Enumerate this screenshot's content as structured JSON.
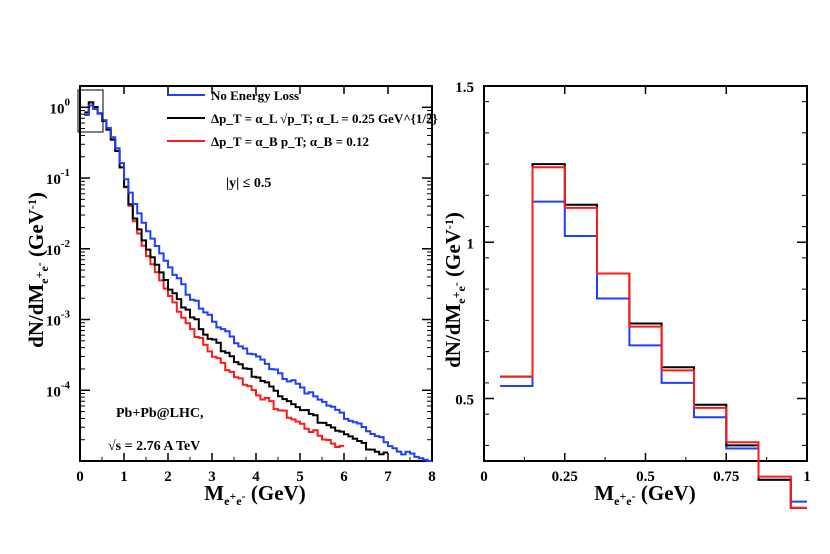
{
  "chart_data": [
    {
      "type": "line",
      "panel": "left",
      "title": "",
      "xlabel": "M_{e+e-} (GeV)",
      "ylabel": "dN/dM_{e+e-} (GeV^{-1})",
      "yscale": "log",
      "xlim": [
        0,
        8
      ],
      "ylim": [
        1e-05,
        2
      ],
      "xticks": [
        "0",
        "1",
        "2",
        "3",
        "4",
        "5",
        "6",
        "7",
        "8"
      ],
      "yticks": [
        "10^0",
        "10^-1",
        "10^-2",
        "10^-3",
        "10^-4"
      ],
      "bin_width": 0.1,
      "x_start": 0.1,
      "legend_position": "top-right",
      "legend": [
        {
          "label": "No Energy Loss",
          "color": "#1f3fff"
        },
        {
          "label": "Δp_T = α_L √p_T; α_L = 0.25 GeV^{1/2}",
          "color": "#000000"
        },
        {
          "label": "Δp_T = α_B p_T; α_B = 0.12",
          "color": "#ff1a1a"
        }
      ],
      "annotations": [
        "|y| ≤ 0.5",
        "Pb+Pb@LHC,",
        "√s = 2.76 A TeV"
      ],
      "series": [
        {
          "name": "No Energy Loss",
          "color": "#1f3fff",
          "anchors": [
            [
              0.1,
              0.55
            ],
            [
              0.2,
              1.1
            ],
            [
              0.3,
              1.02
            ],
            [
              0.5,
              0.75
            ],
            [
              0.7,
              0.45
            ],
            [
              0.9,
              0.22
            ],
            [
              1.0,
              0.12
            ],
            [
              1.2,
              0.05
            ],
            [
              1.5,
              0.02
            ],
            [
              2.0,
              0.006
            ],
            [
              2.5,
              0.0022
            ],
            [
              3.0,
              0.001
            ],
            [
              3.5,
              0.00052
            ],
            [
              4.0,
              0.0003
            ],
            [
              4.5,
              0.00018
            ],
            [
              5.0,
              0.00011
            ],
            [
              5.5,
              6.8e-05
            ],
            [
              6.0,
              4.5e-05
            ],
            [
              6.5,
              2.8e-05
            ],
            [
              7.0,
              1.8e-05
            ],
            [
              7.5,
              1.2e-05
            ],
            [
              8.0,
              1e-05
            ]
          ]
        },
        {
          "name": "Δp_T = α_L √p_T; α_L = 0.25 GeV^{1/2}",
          "color": "#000000",
          "anchors": [
            [
              0.1,
              0.58
            ],
            [
              0.2,
              1.24
            ],
            [
              0.3,
              1.12
            ],
            [
              0.5,
              0.74
            ],
            [
              0.7,
              0.42
            ],
            [
              0.9,
              0.2
            ],
            [
              1.0,
              0.1
            ],
            [
              1.2,
              0.032
            ],
            [
              1.5,
              0.011
            ],
            [
              2.0,
              0.0032
            ],
            [
              2.5,
              0.0012
            ],
            [
              3.0,
              0.00052
            ],
            [
              3.5,
              0.00028
            ],
            [
              4.0,
              0.00016
            ],
            [
              4.5,
              9.5e-05
            ],
            [
              5.0,
              5.8e-05
            ],
            [
              5.5,
              3.6e-05
            ],
            [
              6.0,
              2.4e-05
            ],
            [
              6.5,
              1.6e-05
            ],
            [
              7.0,
              1.2e-05
            ]
          ]
        },
        {
          "name": "Δp_T = α_B p_T; α_B = 0.12",
          "color": "#ff1a1a",
          "anchors": [
            [
              0.1,
              0.57
            ],
            [
              0.2,
              1.23
            ],
            [
              0.3,
              1.11
            ],
            [
              0.5,
              0.74
            ],
            [
              0.7,
              0.42
            ],
            [
              0.9,
              0.2
            ],
            [
              1.0,
              0.1
            ],
            [
              1.2,
              0.03
            ],
            [
              1.5,
              0.009
            ],
            [
              2.0,
              0.0024
            ],
            [
              2.5,
              0.0008
            ],
            [
              3.0,
              0.00033
            ],
            [
              3.5,
              0.00017
            ],
            [
              4.0,
              9.5e-05
            ],
            [
              4.5,
              5.5e-05
            ],
            [
              5.0,
              3.4e-05
            ],
            [
              5.5,
              2.2e-05
            ],
            [
              6.0,
              1.5e-05
            ]
          ]
        }
      ]
    },
    {
      "type": "line",
      "panel": "right",
      "title": "",
      "xlabel": "M_{e+e-} (GeV)",
      "ylabel": "dN/dM_{e+e-} (GeV^{-1})",
      "yscale": "linear",
      "xlim": [
        0,
        1
      ],
      "ylim": [
        0.3,
        1.5
      ],
      "xticks": [
        "0",
        "0.25",
        "0.5",
        "0.75",
        "1"
      ],
      "xtick_values": [
        0,
        0.25,
        0.5,
        0.75,
        1
      ],
      "yticks": [
        "0.5",
        "1",
        "1.5"
      ],
      "ytick_values": [
        0.5,
        1,
        1.5
      ],
      "bin_edges": [
        0.05,
        0.15,
        0.25,
        0.35,
        0.45,
        0.55,
        0.65,
        0.75,
        0.85,
        0.95,
        1.0
      ],
      "series": [
        {
          "name": "No Energy Loss",
          "color": "#1f3fff",
          "values": [
            0.54,
            1.13,
            1.02,
            0.82,
            0.67,
            0.55,
            0.44,
            0.34,
            0.24,
            0.17
          ]
        },
        {
          "name": "Δp_T = α_L √p_T; α_L = 0.25 GeV^{1/2}",
          "color": "#000000",
          "values": [
            0.57,
            1.25,
            1.12,
            0.9,
            0.74,
            0.6,
            0.48,
            0.35,
            0.24,
            0.15
          ]
        },
        {
          "name": "Δp_T = α_B p_T; α_B = 0.12",
          "color": "#ff1a1a",
          "values": [
            0.57,
            1.24,
            1.11,
            0.9,
            0.73,
            0.59,
            0.47,
            0.36,
            0.25,
            0.15
          ]
        }
      ]
    }
  ]
}
